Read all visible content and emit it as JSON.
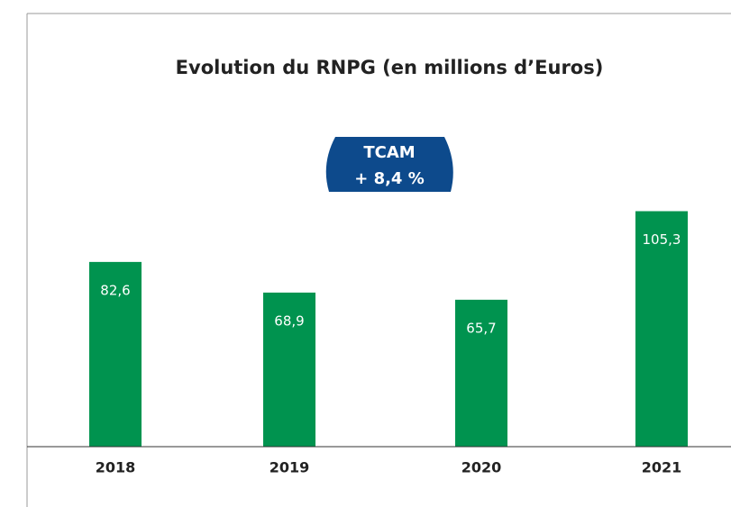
{
  "chart_data": {
    "type": "bar",
    "title": "Evolution du RNPG (en millions d’Euros)",
    "annotations": [
      "TCAM",
      "+ 8,4 %"
    ],
    "categories": [
      "2018",
      "2019",
      "2020",
      "2021"
    ],
    "values": [
      82.6,
      68.9,
      65.7,
      105.3
    ],
    "value_labels": [
      "82,6",
      "68,9",
      "65,7",
      "105,3"
    ],
    "color": "#00934f",
    "ylim": [
      0,
      120
    ]
  }
}
